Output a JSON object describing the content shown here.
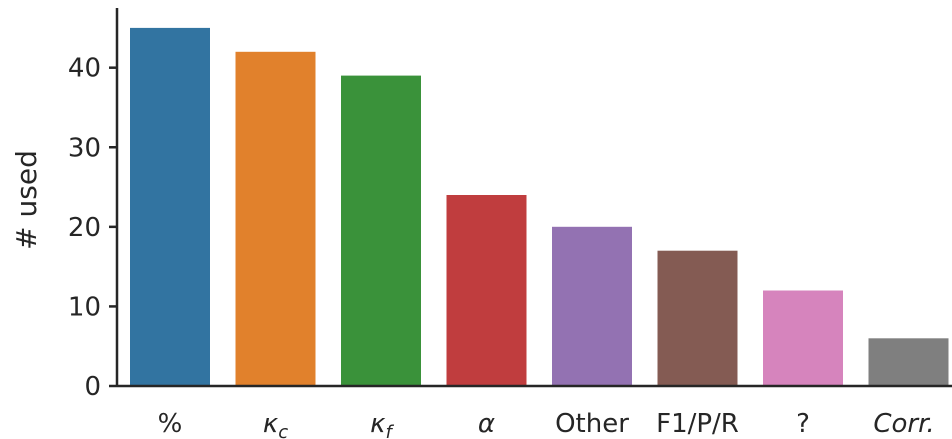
{
  "chart_data": {
    "type": "bar",
    "categories": [
      "%",
      "κc",
      "κf",
      "α",
      "Other",
      "F1/P/R",
      "?",
      "Corr."
    ],
    "category_labels": [
      {
        "base": "%",
        "sub": ""
      },
      {
        "base": "κ",
        "sub": "c"
      },
      {
        "base": "κ",
        "sub": "f"
      },
      {
        "base": "α",
        "sub": ""
      },
      {
        "base": "Other",
        "sub": ""
      },
      {
        "base": "F1/P/R",
        "sub": ""
      },
      {
        "base": "?",
        "sub": ""
      },
      {
        "base": "Corr.",
        "sub": ""
      }
    ],
    "italic_categories": [
      false,
      true,
      true,
      true,
      false,
      false,
      false,
      true
    ],
    "values": [
      45,
      42,
      39,
      24,
      20,
      17,
      12,
      6
    ],
    "colors": [
      "#3274a1",
      "#e1812c",
      "#3a923a",
      "#c03d3e",
      "#9372b2",
      "#845b53",
      "#d684bd",
      "#7f7f7f"
    ],
    "title": "",
    "xlabel": "",
    "ylabel": "# used",
    "ylim": [
      0,
      47.5
    ],
    "yticks": [
      0,
      10,
      20,
      30,
      40
    ],
    "grid": false,
    "legend": "none"
  }
}
